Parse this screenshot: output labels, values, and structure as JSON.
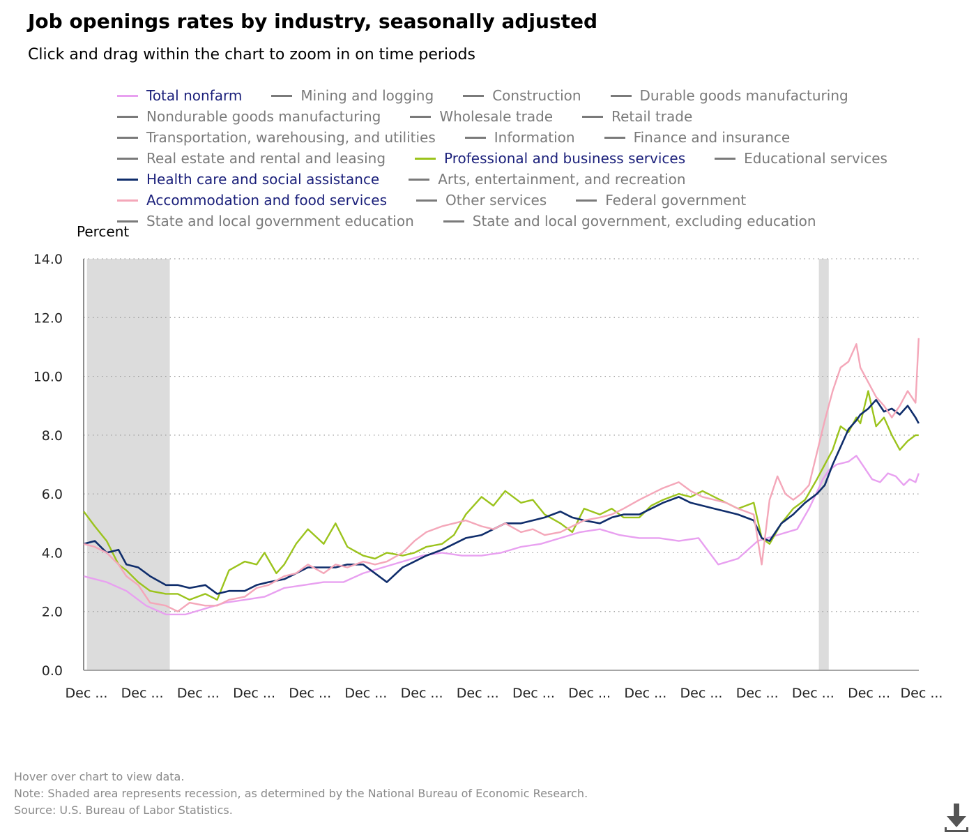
{
  "title": "Job openings rates by industry, seasonally adjusted",
  "subtitle": "Click and drag within the chart to zoom in on time periods",
  "legend_rows": [
    [
      {
        "label": "Total nonfarm",
        "color": "#e8a0f0",
        "active": true
      },
      {
        "label": "Mining and logging",
        "color": "#7a7a7a",
        "active": false
      },
      {
        "label": "Construction",
        "color": "#7a7a7a",
        "active": false
      },
      {
        "label": "Durable goods manufacturing",
        "color": "#7a7a7a",
        "active": false
      }
    ],
    [
      {
        "label": "Nondurable goods manufacturing",
        "color": "#7a7a7a",
        "active": false
      },
      {
        "label": "Wholesale trade",
        "color": "#7a7a7a",
        "active": false
      },
      {
        "label": "Retail trade",
        "color": "#7a7a7a",
        "active": false
      }
    ],
    [
      {
        "label": "Transportation, warehousing, and utilities",
        "color": "#7a7a7a",
        "active": false
      },
      {
        "label": "Information",
        "color": "#7a7a7a",
        "active": false
      },
      {
        "label": "Finance and insurance",
        "color": "#7a7a7a",
        "active": false
      }
    ],
    [
      {
        "label": "Real estate and rental and leasing",
        "color": "#7a7a7a",
        "active": false
      },
      {
        "label": "Professional and business services",
        "color": "#9bc31c",
        "active": true
      },
      {
        "label": "Educational services",
        "color": "#7a7a7a",
        "active": false
      }
    ],
    [
      {
        "label": "Health care and social assistance",
        "color": "#0f2d6b",
        "active": true
      },
      {
        "label": "Arts, entertainment, and recreation",
        "color": "#7a7a7a",
        "active": false
      }
    ],
    [
      {
        "label": "Accommodation and food services",
        "color": "#f4a7b9",
        "active": true
      },
      {
        "label": "Other services",
        "color": "#7a7a7a",
        "active": false
      },
      {
        "label": "Federal government",
        "color": "#7a7a7a",
        "active": false
      }
    ],
    [
      {
        "label": "State and local government education",
        "color": "#7a7a7a",
        "active": false
      },
      {
        "label": "State and local government, excluding education",
        "color": "#7a7a7a",
        "active": false
      }
    ]
  ],
  "notes": {
    "hover": "Hover over chart to view data.",
    "note": "Note: Shaded area represents recession, as determined by the National Bureau of Economic Research.",
    "source": "Source: U.S. Bureau of Labor Statistics."
  },
  "chart_data": {
    "type": "line",
    "ylabel": "Percent",
    "ylim": [
      0,
      14
    ],
    "yticks": [
      "0.0",
      "2.0",
      "4.0",
      "6.0",
      "8.0",
      "10.0",
      "12.0",
      "14.0"
    ],
    "x_start_year": 2000.917,
    "x_end_year": 2022.083,
    "xtick_years": [
      2000.917,
      2002.333,
      2003.75,
      2005.167,
      2006.583,
      2008.0,
      2009.417,
      2010.833,
      2012.25,
      2013.667,
      2015.083,
      2016.5,
      2017.917,
      2019.333,
      2020.75,
      2022.083
    ],
    "xtick_labels": [
      "Dec ...",
      "Dec ...",
      "Dec ...",
      "Dec ...",
      "Dec ...",
      "Dec ...",
      "Dec ...",
      "Dec ...",
      "Dec ...",
      "Dec ...",
      "Dec ...",
      "Dec ...",
      "Dec ...",
      "Dec ...",
      "Dec ...",
      "Dec ..."
    ],
    "grid": "horizontal dotted",
    "recessions": [
      [
        2001.0,
        2003.1
      ],
      [
        2019.55,
        2019.8
      ]
    ],
    "series": [
      {
        "name": "Total nonfarm",
        "color": "#e8a0f0",
        "x": [
          2000.92,
          2001.5,
          2002.0,
          2002.5,
          2003.0,
          2003.5,
          2004.0,
          2004.5,
          2005.0,
          2005.5,
          2006.0,
          2006.5,
          2007.0,
          2007.5,
          2008.0,
          2008.5,
          2009.0,
          2009.5,
          2010.0,
          2010.5,
          2011.0,
          2011.5,
          2012.0,
          2012.5,
          2013.0,
          2013.5,
          2014.0,
          2014.5,
          2015.0,
          2015.5,
          2016.0,
          2016.5,
          2017.0,
          2017.5,
          2018.0,
          2018.5,
          2019.0,
          2019.3,
          2019.55,
          2019.65,
          2019.8,
          2020.0,
          2020.3,
          2020.5,
          2020.7,
          2020.9,
          2021.1,
          2021.3,
          2021.5,
          2021.7,
          2021.85,
          2022.0,
          2022.08
        ],
        "y": [
          3.2,
          3.0,
          2.7,
          2.2,
          1.9,
          1.9,
          2.1,
          2.3,
          2.4,
          2.5,
          2.8,
          2.9,
          3.0,
          3.0,
          3.3,
          3.5,
          3.7,
          3.9,
          4.0,
          3.9,
          3.9,
          4.0,
          4.2,
          4.3,
          4.5,
          4.7,
          4.8,
          4.6,
          4.5,
          4.5,
          4.4,
          4.5,
          3.6,
          3.8,
          4.4,
          4.6,
          4.8,
          5.5,
          6.2,
          6.5,
          6.8,
          7.0,
          7.1,
          7.3,
          6.9,
          6.5,
          6.4,
          6.7,
          6.6,
          6.3,
          6.5,
          6.4,
          6.7
        ]
      },
      {
        "name": "Professional and business services",
        "color": "#9bc31c",
        "x": [
          2000.92,
          2001.2,
          2001.5,
          2001.8,
          2002.0,
          2002.3,
          2002.6,
          2003.0,
          2003.3,
          2003.6,
          2004.0,
          2004.3,
          2004.6,
          2005.0,
          2005.3,
          2005.5,
          2005.8,
          2006.0,
          2006.3,
          2006.6,
          2007.0,
          2007.3,
          2007.6,
          2008.0,
          2008.3,
          2008.6,
          2009.0,
          2009.3,
          2009.6,
          2010.0,
          2010.3,
          2010.6,
          2011.0,
          2011.3,
          2011.6,
          2012.0,
          2012.3,
          2012.6,
          2013.0,
          2013.3,
          2013.6,
          2014.0,
          2014.3,
          2014.6,
          2015.0,
          2015.3,
          2015.6,
          2016.0,
          2016.3,
          2016.6,
          2016.9,
          2017.2,
          2017.5,
          2017.7,
          2017.9,
          2018.1,
          2018.3,
          2018.6,
          2018.9,
          2019.2,
          2019.5,
          2019.7,
          2019.9,
          2020.1,
          2020.3,
          2020.5,
          2020.6,
          2020.8,
          2021.0,
          2021.2,
          2021.4,
          2021.6,
          2021.8,
          2022.0,
          2022.08
        ],
        "y": [
          5.4,
          4.9,
          4.4,
          3.6,
          3.4,
          3.0,
          2.7,
          2.6,
          2.6,
          2.4,
          2.6,
          2.4,
          3.4,
          3.7,
          3.6,
          4.0,
          3.3,
          3.6,
          4.3,
          4.8,
          4.3,
          5.0,
          4.2,
          3.9,
          3.8,
          4.0,
          3.9,
          4.0,
          4.2,
          4.3,
          4.6,
          5.3,
          5.9,
          5.6,
          6.1,
          5.7,
          5.8,
          5.3,
          5.0,
          4.7,
          5.5,
          5.3,
          5.5,
          5.2,
          5.2,
          5.6,
          5.8,
          6.0,
          5.9,
          6.1,
          5.9,
          5.7,
          5.5,
          5.6,
          5.7,
          4.5,
          4.3,
          5.0,
          5.5,
          5.8,
          6.5,
          7.0,
          7.5,
          8.3,
          8.1,
          8.6,
          8.4,
          9.5,
          8.3,
          8.6,
          8.0,
          7.5,
          7.8,
          8.0,
          8.0
        ]
      },
      {
        "name": "Health care and social assistance",
        "color": "#0f2d6b",
        "x": [
          2000.92,
          2001.2,
          2001.5,
          2001.8,
          2002.0,
          2002.3,
          2002.6,
          2003.0,
          2003.3,
          2003.6,
          2004.0,
          2004.3,
          2004.6,
          2005.0,
          2005.3,
          2005.6,
          2006.0,
          2006.3,
          2006.6,
          2007.0,
          2007.3,
          2007.6,
          2008.0,
          2008.3,
          2008.6,
          2009.0,
          2009.3,
          2009.6,
          2010.0,
          2010.3,
          2010.6,
          2011.0,
          2011.3,
          2011.6,
          2012.0,
          2012.3,
          2012.6,
          2013.0,
          2013.3,
          2013.6,
          2014.0,
          2014.3,
          2014.6,
          2015.0,
          2015.3,
          2015.6,
          2016.0,
          2016.3,
          2016.6,
          2016.9,
          2017.2,
          2017.5,
          2017.7,
          2017.9,
          2018.1,
          2018.3,
          2018.6,
          2018.9,
          2019.2,
          2019.5,
          2019.7,
          2019.9,
          2020.1,
          2020.3,
          2020.5,
          2020.6,
          2020.8,
          2021.0,
          2021.2,
          2021.4,
          2021.6,
          2021.8,
          2022.0,
          2022.08
        ],
        "y": [
          4.3,
          4.4,
          4.0,
          4.1,
          3.6,
          3.5,
          3.2,
          2.9,
          2.9,
          2.8,
          2.9,
          2.6,
          2.7,
          2.7,
          2.9,
          3.0,
          3.1,
          3.3,
          3.5,
          3.5,
          3.5,
          3.6,
          3.6,
          3.3,
          3.0,
          3.5,
          3.7,
          3.9,
          4.1,
          4.3,
          4.5,
          4.6,
          4.8,
          5.0,
          5.0,
          5.1,
          5.2,
          5.4,
          5.2,
          5.1,
          5.0,
          5.2,
          5.3,
          5.3,
          5.5,
          5.7,
          5.9,
          5.7,
          5.6,
          5.5,
          5.4,
          5.3,
          5.2,
          5.1,
          4.5,
          4.4,
          5.0,
          5.3,
          5.7,
          6.0,
          6.3,
          7.0,
          7.6,
          8.2,
          8.5,
          8.7,
          8.9,
          9.2,
          8.8,
          8.9,
          8.7,
          9.0,
          8.6,
          8.4
        ]
      },
      {
        "name": "Accommodation and food services",
        "color": "#f4a7b9",
        "x": [
          2000.92,
          2001.2,
          2001.5,
          2001.8,
          2002.0,
          2002.3,
          2002.6,
          2003.0,
          2003.3,
          2003.6,
          2004.0,
          2004.3,
          2004.6,
          2005.0,
          2005.3,
          2005.6,
          2006.0,
          2006.3,
          2006.6,
          2007.0,
          2007.3,
          2007.6,
          2008.0,
          2008.3,
          2008.6,
          2009.0,
          2009.3,
          2009.6,
          2010.0,
          2010.3,
          2010.6,
          2011.0,
          2011.3,
          2011.6,
          2012.0,
          2012.3,
          2012.6,
          2013.0,
          2013.3,
          2013.6,
          2014.0,
          2014.3,
          2014.6,
          2015.0,
          2015.3,
          2015.6,
          2016.0,
          2016.3,
          2016.6,
          2016.9,
          2017.2,
          2017.5,
          2017.7,
          2017.9,
          2018.1,
          2018.3,
          2018.5,
          2018.7,
          2018.9,
          2019.1,
          2019.3,
          2019.5,
          2019.7,
          2019.9,
          2020.1,
          2020.3,
          2020.5,
          2020.6,
          2020.8,
          2021.0,
          2021.2,
          2021.4,
          2021.6,
          2021.8,
          2022.0,
          2022.08
        ],
        "y": [
          4.3,
          4.2,
          4.0,
          3.6,
          3.2,
          2.9,
          2.3,
          2.2,
          2.0,
          2.3,
          2.2,
          2.2,
          2.4,
          2.5,
          2.8,
          2.9,
          3.2,
          3.3,
          3.6,
          3.3,
          3.6,
          3.5,
          3.7,
          3.6,
          3.7,
          4.0,
          4.4,
          4.7,
          4.9,
          5.0,
          5.1,
          4.9,
          4.8,
          5.0,
          4.7,
          4.8,
          4.6,
          4.7,
          4.9,
          5.1,
          5.2,
          5.3,
          5.5,
          5.8,
          6.0,
          6.2,
          6.4,
          6.1,
          5.9,
          5.8,
          5.7,
          5.5,
          5.4,
          5.3,
          3.6,
          5.8,
          6.6,
          6.0,
          5.8,
          6.0,
          6.3,
          7.4,
          8.5,
          9.5,
          10.3,
          10.5,
          11.1,
          10.3,
          9.8,
          9.3,
          9.0,
          8.6,
          9.0,
          9.5,
          9.1,
          11.3
        ]
      }
    ]
  }
}
